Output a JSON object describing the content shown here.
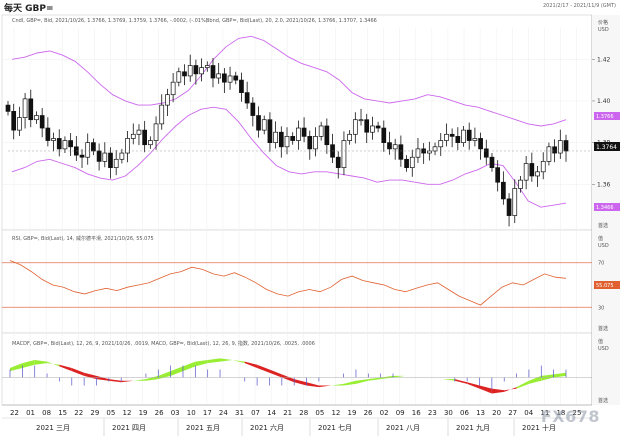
{
  "header": {
    "title": "每天 GBP=",
    "date_range": "2021/2/17 - 2021/11/9 (GMT)"
  },
  "price_panel": {
    "legend_candle": "Cndl, GBP=, Bid, 2021/10/26, 1.3766, 1.3769, 1.3759, 1.3766, -.0002, (-.01%)",
    "legend_bband": "Bbnd, GBP=, Bid(Last), 20, 2.0, 2021/10/26, 1.3766, 1.3707, 1.3466",
    "axis_title": "价格",
    "axis_unit": "USD",
    "last_price_tag": "1.3764",
    "bband_upper_tag": "1.3766",
    "bband_lower_tag": "1.3466",
    "corner_label": "首选"
  },
  "rsi_panel": {
    "legend": "RSI, GBP=, Bid(Last), 14, 威尔德平滑, 2021/10/26, 55.075",
    "axis_title": "值",
    "axis_unit": "USD",
    "value_tag": "55.075",
    "corner_label": "首选"
  },
  "macd_panel": {
    "legend": "MACDF, GBP=, Bid(Last), 12, 26, 9, 2021/10/26, .0019, MACD, GBP=, Bid(Last), 12, 26, 9, 指数, 2021/10/26, .0025, .0006",
    "axis_title": "值",
    "axis_unit": "USD",
    "corner_label": "首选"
  },
  "watermark": "FX678",
  "colors": {
    "candle": "#111111",
    "bband": "#cc66ee",
    "rsi": "#e06030",
    "rsi_bounds": "#e07050",
    "macd_up": "#99ee33",
    "macd_down": "#dd2222",
    "histogram": "#5555cc",
    "last_tag": "#000000",
    "bband_tag": "#cc66ee"
  },
  "chart_data": {
    "type": "candlestick",
    "x_month_labels": [
      "2021 三月",
      "2021 四月",
      "2021 五月",
      "2021 六月",
      "2021 七月",
      "2021 八月",
      "2021 九月",
      "2021 十月"
    ],
    "x_day_labels": [
      "22",
      "01",
      "08",
      "15",
      "22",
      "29",
      "05",
      "12",
      "19",
      "26",
      "03",
      "10",
      "17",
      "24",
      "31",
      "07",
      "14",
      "21",
      "28",
      "05",
      "12",
      "19",
      "26",
      "02",
      "09",
      "16",
      "23",
      "30",
      "06",
      "13",
      "20",
      "27",
      "04",
      "11",
      "18",
      "25"
    ],
    "price_ylim": [
      1.34,
      1.435
    ],
    "price_ticks": [
      "1.42",
      "1.40",
      "1.38",
      "1.36"
    ],
    "close_series": [
      1.395,
      1.386,
      1.392,
      1.401,
      1.391,
      1.393,
      1.387,
      1.381,
      1.382,
      1.377,
      1.381,
      1.378,
      1.374,
      1.373,
      1.38,
      1.376,
      1.371,
      1.375,
      1.368,
      1.372,
      1.375,
      1.382,
      1.384,
      1.386,
      1.379,
      1.381,
      1.389,
      1.398,
      1.403,
      1.409,
      1.414,
      1.412,
      1.417,
      1.413,
      1.416,
      1.417,
      1.411,
      1.413,
      1.409,
      1.412,
      1.41,
      1.404,
      1.399,
      1.393,
      1.386,
      1.391,
      1.38,
      1.385,
      1.378,
      1.383,
      1.381,
      1.387,
      1.383,
      1.377,
      1.383,
      1.388,
      1.379,
      1.373,
      1.368,
      1.381,
      1.384,
      1.391,
      1.391,
      1.385,
      1.388,
      1.387,
      1.38,
      1.377,
      1.379,
      1.372,
      1.368,
      1.373,
      1.377,
      1.375,
      1.376,
      1.378,
      1.381,
      1.384,
      1.383,
      1.38,
      1.386,
      1.381,
      1.382,
      1.377,
      1.373,
      1.368,
      1.361,
      1.353,
      1.345,
      1.358,
      1.362,
      1.37,
      1.364,
      1.366,
      1.371,
      1.378,
      1.375,
      1.381,
      1.376
    ],
    "bband_upper": [
      1.42,
      1.421,
      1.423,
      1.424,
      1.422,
      1.419,
      1.414,
      1.408,
      1.403,
      1.4,
      1.398,
      1.398,
      1.399,
      1.401,
      1.405,
      1.412,
      1.42,
      1.426,
      1.43,
      1.431,
      1.429,
      1.425,
      1.421,
      1.418,
      1.416,
      1.414,
      1.41,
      1.404,
      1.401,
      1.4,
      1.399,
      1.4,
      1.401,
      1.403,
      1.402,
      1.4,
      1.398,
      1.397,
      1.395,
      1.393,
      1.391,
      1.389,
      1.388,
      1.389,
      1.391
    ],
    "bband_lower": [
      1.366,
      1.368,
      1.371,
      1.372,
      1.37,
      1.368,
      1.365,
      1.363,
      1.362,
      1.364,
      1.369,
      1.375,
      1.382,
      1.388,
      1.393,
      1.396,
      1.397,
      1.396,
      1.39,
      1.382,
      1.375,
      1.369,
      1.366,
      1.365,
      1.366,
      1.366,
      1.365,
      1.364,
      1.363,
      1.361,
      1.362,
      1.362,
      1.361,
      1.36,
      1.36,
      1.362,
      1.365,
      1.367,
      1.37,
      1.369,
      1.361,
      1.352,
      1.349,
      1.35,
      1.351
    ],
    "rsi_ylim": [
      15,
      85
    ],
    "rsi_ticks": [
      "70",
      "50",
      "30"
    ],
    "rsi_bounds": [
      70,
      30
    ],
    "rsi_series": [
      72,
      68,
      62,
      55,
      50,
      48,
      44,
      42,
      45,
      47,
      45,
      48,
      50,
      52,
      56,
      60,
      62,
      66,
      64,
      60,
      58,
      61,
      57,
      52,
      46,
      42,
      40,
      44,
      46,
      44,
      48,
      55,
      58,
      54,
      52,
      50,
      46,
      44,
      47,
      50,
      52,
      46,
      40,
      36,
      32,
      40,
      48,
      52,
      50,
      55,
      60,
      57,
      56
    ],
    "macd_ylim": [
      -0.016,
      0.016
    ],
    "macd_series": [
      0.006,
      0.009,
      0.011,
      0.01,
      0.007,
      0.004,
      0.001,
      -0.001,
      -0.002,
      -0.003,
      -0.002,
      -0.001,
      0.001,
      0.004,
      0.007,
      0.01,
      0.011,
      0.012,
      0.011,
      0.009,
      0.006,
      0.003,
      0.0,
      -0.003,
      -0.005,
      -0.006,
      -0.005,
      -0.004,
      -0.002,
      -0.001,
      0.0,
      0.001,
      0.001,
      0.001,
      0.0,
      -0.001,
      -0.002,
      -0.004,
      -0.007,
      -0.01,
      -0.009,
      -0.006,
      -0.002,
      0.001,
      0.002,
      0.003
    ],
    "signal_series": [
      0.004,
      0.006,
      0.008,
      0.009,
      0.008,
      0.006,
      0.003,
      0.001,
      -0.001,
      -0.002,
      -0.002,
      -0.002,
      -0.001,
      0.001,
      0.004,
      0.007,
      0.009,
      0.01,
      0.011,
      0.01,
      0.008,
      0.005,
      0.002,
      -0.001,
      -0.003,
      -0.005,
      -0.005,
      -0.005,
      -0.004,
      -0.002,
      -0.001,
      0.0,
      0.001,
      0.001,
      0.0,
      -0.001,
      -0.001,
      -0.003,
      -0.005,
      -0.007,
      -0.008,
      -0.007,
      -0.004,
      -0.002,
      0.0,
      0.001
    ]
  }
}
